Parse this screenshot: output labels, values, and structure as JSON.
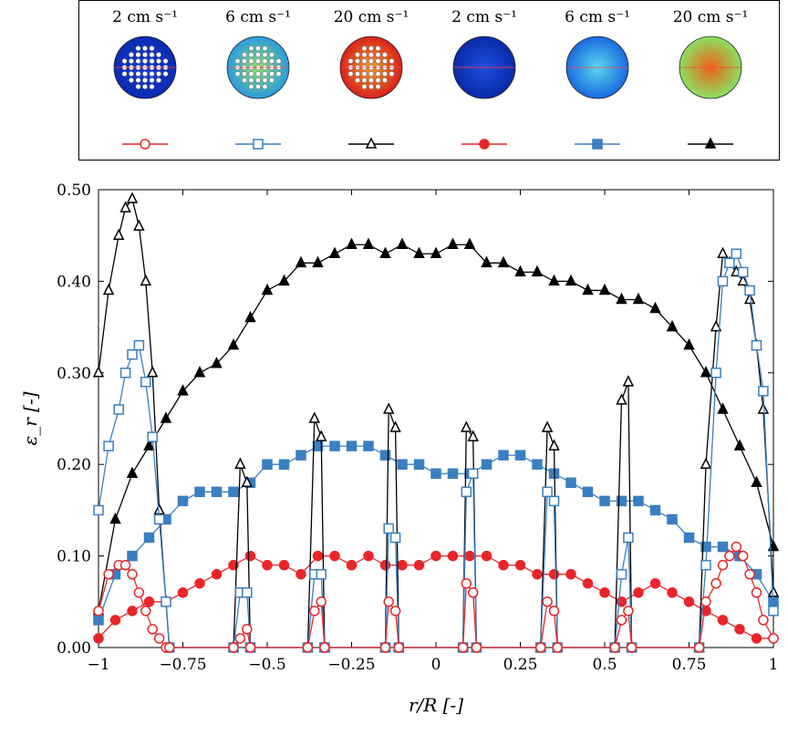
{
  "chart_data": {
    "type": "line",
    "xlabel": "r/R [-]",
    "ylabel": "ε_r [-]",
    "xlim": [
      -1,
      1
    ],
    "ylim": [
      0,
      0.5
    ],
    "x_ticks": [
      "−1",
      "−0.75",
      "−0.5",
      "−0.25",
      "0",
      "0.25",
      "0.5",
      "0.75",
      "1"
    ],
    "y_ticks": [
      "0.00",
      "0.10",
      "0.20",
      "0.30",
      "0.40",
      "0.50"
    ],
    "legend_placement": "top-outside",
    "legend": [
      {
        "label": "2 cm s⁻¹",
        "marker": "open-circle",
        "color": "#e8262a",
        "disc": "with-tubes-2"
      },
      {
        "label": "6 cm s⁻¹",
        "marker": "open-square",
        "color": "#3a7fc0",
        "disc": "with-tubes-6"
      },
      {
        "label": "20 cm s⁻¹",
        "marker": "open-triangle",
        "color": "#000000",
        "disc": "with-tubes-20"
      },
      {
        "label": "2 cm s⁻¹",
        "marker": "filled-circle",
        "color": "#e8262a",
        "disc": "empty-2"
      },
      {
        "label": "6 cm s⁻¹",
        "marker": "filled-square",
        "color": "#3a7fc0",
        "disc": "empty-6"
      },
      {
        "label": "20 cm s⁻¹",
        "marker": "filled-triangle",
        "color": "#000000",
        "disc": "empty-20"
      }
    ],
    "series": [
      {
        "marker": "filled-triangle",
        "color": "#000000",
        "x": [
          -1,
          -0.95,
          -0.9,
          -0.85,
          -0.8,
          -0.75,
          -0.7,
          -0.65,
          -0.6,
          -0.55,
          -0.5,
          -0.45,
          -0.4,
          -0.35,
          -0.3,
          -0.25,
          -0.2,
          -0.15,
          -0.1,
          -0.05,
          0,
          0.05,
          0.1,
          0.15,
          0.2,
          0.25,
          0.3,
          0.35,
          0.4,
          0.45,
          0.5,
          0.55,
          0.6,
          0.65,
          0.7,
          0.75,
          0.8,
          0.85,
          0.9,
          0.95,
          1
        ],
        "y": [
          0.04,
          0.14,
          0.19,
          0.22,
          0.25,
          0.28,
          0.3,
          0.31,
          0.33,
          0.36,
          0.39,
          0.4,
          0.42,
          0.42,
          0.43,
          0.44,
          0.44,
          0.43,
          0.44,
          0.43,
          0.43,
          0.44,
          0.44,
          0.42,
          0.42,
          0.41,
          0.41,
          0.4,
          0.4,
          0.39,
          0.39,
          0.38,
          0.38,
          0.37,
          0.35,
          0.33,
          0.3,
          0.26,
          0.22,
          0.18,
          0.11
        ]
      },
      {
        "marker": "filled-square",
        "color": "#3a7fc0",
        "x": [
          -1,
          -0.95,
          -0.9,
          -0.85,
          -0.8,
          -0.75,
          -0.7,
          -0.65,
          -0.6,
          -0.55,
          -0.5,
          -0.45,
          -0.4,
          -0.35,
          -0.3,
          -0.25,
          -0.2,
          -0.15,
          -0.1,
          -0.05,
          0,
          0.05,
          0.1,
          0.15,
          0.2,
          0.25,
          0.3,
          0.35,
          0.4,
          0.45,
          0.5,
          0.55,
          0.6,
          0.65,
          0.7,
          0.75,
          0.8,
          0.85,
          0.9,
          0.95,
          1
        ],
        "y": [
          0.03,
          0.08,
          0.1,
          0.12,
          0.14,
          0.16,
          0.17,
          0.17,
          0.17,
          0.18,
          0.2,
          0.2,
          0.21,
          0.22,
          0.22,
          0.22,
          0.22,
          0.21,
          0.2,
          0.2,
          0.19,
          0.19,
          0.19,
          0.2,
          0.21,
          0.21,
          0.2,
          0.19,
          0.18,
          0.17,
          0.16,
          0.16,
          0.16,
          0.15,
          0.14,
          0.12,
          0.11,
          0.11,
          0.1,
          0.08,
          0.05
        ]
      },
      {
        "marker": "filled-circle",
        "color": "#e8262a",
        "x": [
          -1,
          -0.95,
          -0.9,
          -0.85,
          -0.8,
          -0.75,
          -0.7,
          -0.65,
          -0.6,
          -0.55,
          -0.5,
          -0.45,
          -0.4,
          -0.35,
          -0.3,
          -0.25,
          -0.2,
          -0.15,
          -0.1,
          -0.05,
          0,
          0.05,
          0.1,
          0.15,
          0.2,
          0.25,
          0.3,
          0.35,
          0.4,
          0.45,
          0.5,
          0.55,
          0.6,
          0.65,
          0.7,
          0.75,
          0.8,
          0.85,
          0.9,
          0.95,
          1
        ],
        "y": [
          0.01,
          0.03,
          0.04,
          0.05,
          0.05,
          0.06,
          0.07,
          0.08,
          0.09,
          0.1,
          0.09,
          0.09,
          0.08,
          0.1,
          0.1,
          0.09,
          0.1,
          0.09,
          0.09,
          0.09,
          0.1,
          0.1,
          0.1,
          0.1,
          0.09,
          0.09,
          0.08,
          0.08,
          0.08,
          0.07,
          0.06,
          0.05,
          0.06,
          0.07,
          0.06,
          0.05,
          0.04,
          0.03,
          0.02,
          0.01,
          0.01
        ]
      },
      {
        "marker": "open-triangle",
        "color": "#000000",
        "x": [
          -1,
          -0.97,
          -0.94,
          -0.92,
          -0.9,
          -0.88,
          -0.86,
          -0.84,
          -0.82,
          -0.8,
          -0.79,
          -0.6,
          -0.58,
          -0.56,
          -0.55,
          -0.38,
          -0.36,
          -0.34,
          -0.33,
          -0.15,
          -0.14,
          -0.12,
          -0.11,
          0.08,
          0.09,
          0.11,
          0.12,
          0.31,
          0.33,
          0.35,
          0.36,
          0.53,
          0.55,
          0.57,
          0.58,
          0.78,
          0.8,
          0.83,
          0.85,
          0.87,
          0.89,
          0.91,
          0.93,
          0.95,
          0.97,
          1
        ],
        "y": [
          0.3,
          0.39,
          0.45,
          0.48,
          0.49,
          0.46,
          0.4,
          0.3,
          0.15,
          0.05,
          0.0,
          0.0,
          0.2,
          0.18,
          0.0,
          0.0,
          0.25,
          0.23,
          0.0,
          0.0,
          0.26,
          0.24,
          0.0,
          0.0,
          0.24,
          0.23,
          0.0,
          0.0,
          0.24,
          0.22,
          0.0,
          0.0,
          0.27,
          0.29,
          0.0,
          0.0,
          0.2,
          0.35,
          0.43,
          0.42,
          0.41,
          0.4,
          0.38,
          0.33,
          0.26,
          0.06
        ]
      },
      {
        "marker": "open-square",
        "color": "#3a7fc0",
        "x": [
          -1,
          -0.97,
          -0.94,
          -0.92,
          -0.9,
          -0.88,
          -0.86,
          -0.84,
          -0.82,
          -0.8,
          -0.79,
          -0.6,
          -0.58,
          -0.56,
          -0.55,
          -0.38,
          -0.36,
          -0.34,
          -0.33,
          -0.15,
          -0.14,
          -0.12,
          -0.11,
          0.08,
          0.09,
          0.11,
          0.12,
          0.31,
          0.33,
          0.35,
          0.36,
          0.53,
          0.55,
          0.57,
          0.58,
          0.78,
          0.8,
          0.83,
          0.85,
          0.87,
          0.89,
          0.91,
          0.93,
          0.95,
          0.97,
          1
        ],
        "y": [
          0.15,
          0.22,
          0.26,
          0.3,
          0.32,
          0.33,
          0.29,
          0.23,
          0.14,
          0.05,
          0.0,
          0.0,
          0.06,
          0.06,
          0.0,
          0.0,
          0.08,
          0.08,
          0.0,
          0.0,
          0.13,
          0.12,
          0.0,
          0.0,
          0.17,
          0.19,
          0.0,
          0.0,
          0.17,
          0.16,
          0.0,
          0.0,
          0.08,
          0.12,
          0.0,
          0.0,
          0.09,
          0.3,
          0.4,
          0.42,
          0.43,
          0.41,
          0.39,
          0.33,
          0.28,
          0.04
        ]
      },
      {
        "marker": "open-circle",
        "color": "#e8262a",
        "x": [
          -1,
          -0.97,
          -0.94,
          -0.92,
          -0.9,
          -0.88,
          -0.86,
          -0.84,
          -0.82,
          -0.8,
          -0.79,
          -0.6,
          -0.58,
          -0.56,
          -0.55,
          -0.38,
          -0.36,
          -0.34,
          -0.33,
          -0.15,
          -0.14,
          -0.12,
          -0.11,
          0.08,
          0.09,
          0.11,
          0.12,
          0.31,
          0.33,
          0.35,
          0.36,
          0.53,
          0.55,
          0.57,
          0.58,
          0.78,
          0.8,
          0.83,
          0.85,
          0.87,
          0.89,
          0.91,
          0.93,
          0.95,
          0.97,
          1
        ],
        "y": [
          0.04,
          0.08,
          0.09,
          0.09,
          0.08,
          0.06,
          0.04,
          0.02,
          0.01,
          0.0,
          0.0,
          0.0,
          0.01,
          0.02,
          0.0,
          0.0,
          0.04,
          0.05,
          0.0,
          0.0,
          0.05,
          0.04,
          0.0,
          0.0,
          0.07,
          0.06,
          0.0,
          0.0,
          0.05,
          0.04,
          0.0,
          0.0,
          0.03,
          0.04,
          0.0,
          0.0,
          0.05,
          0.07,
          0.09,
          0.1,
          0.11,
          0.1,
          0.08,
          0.06,
          0.03,
          0.01
        ]
      }
    ]
  }
}
